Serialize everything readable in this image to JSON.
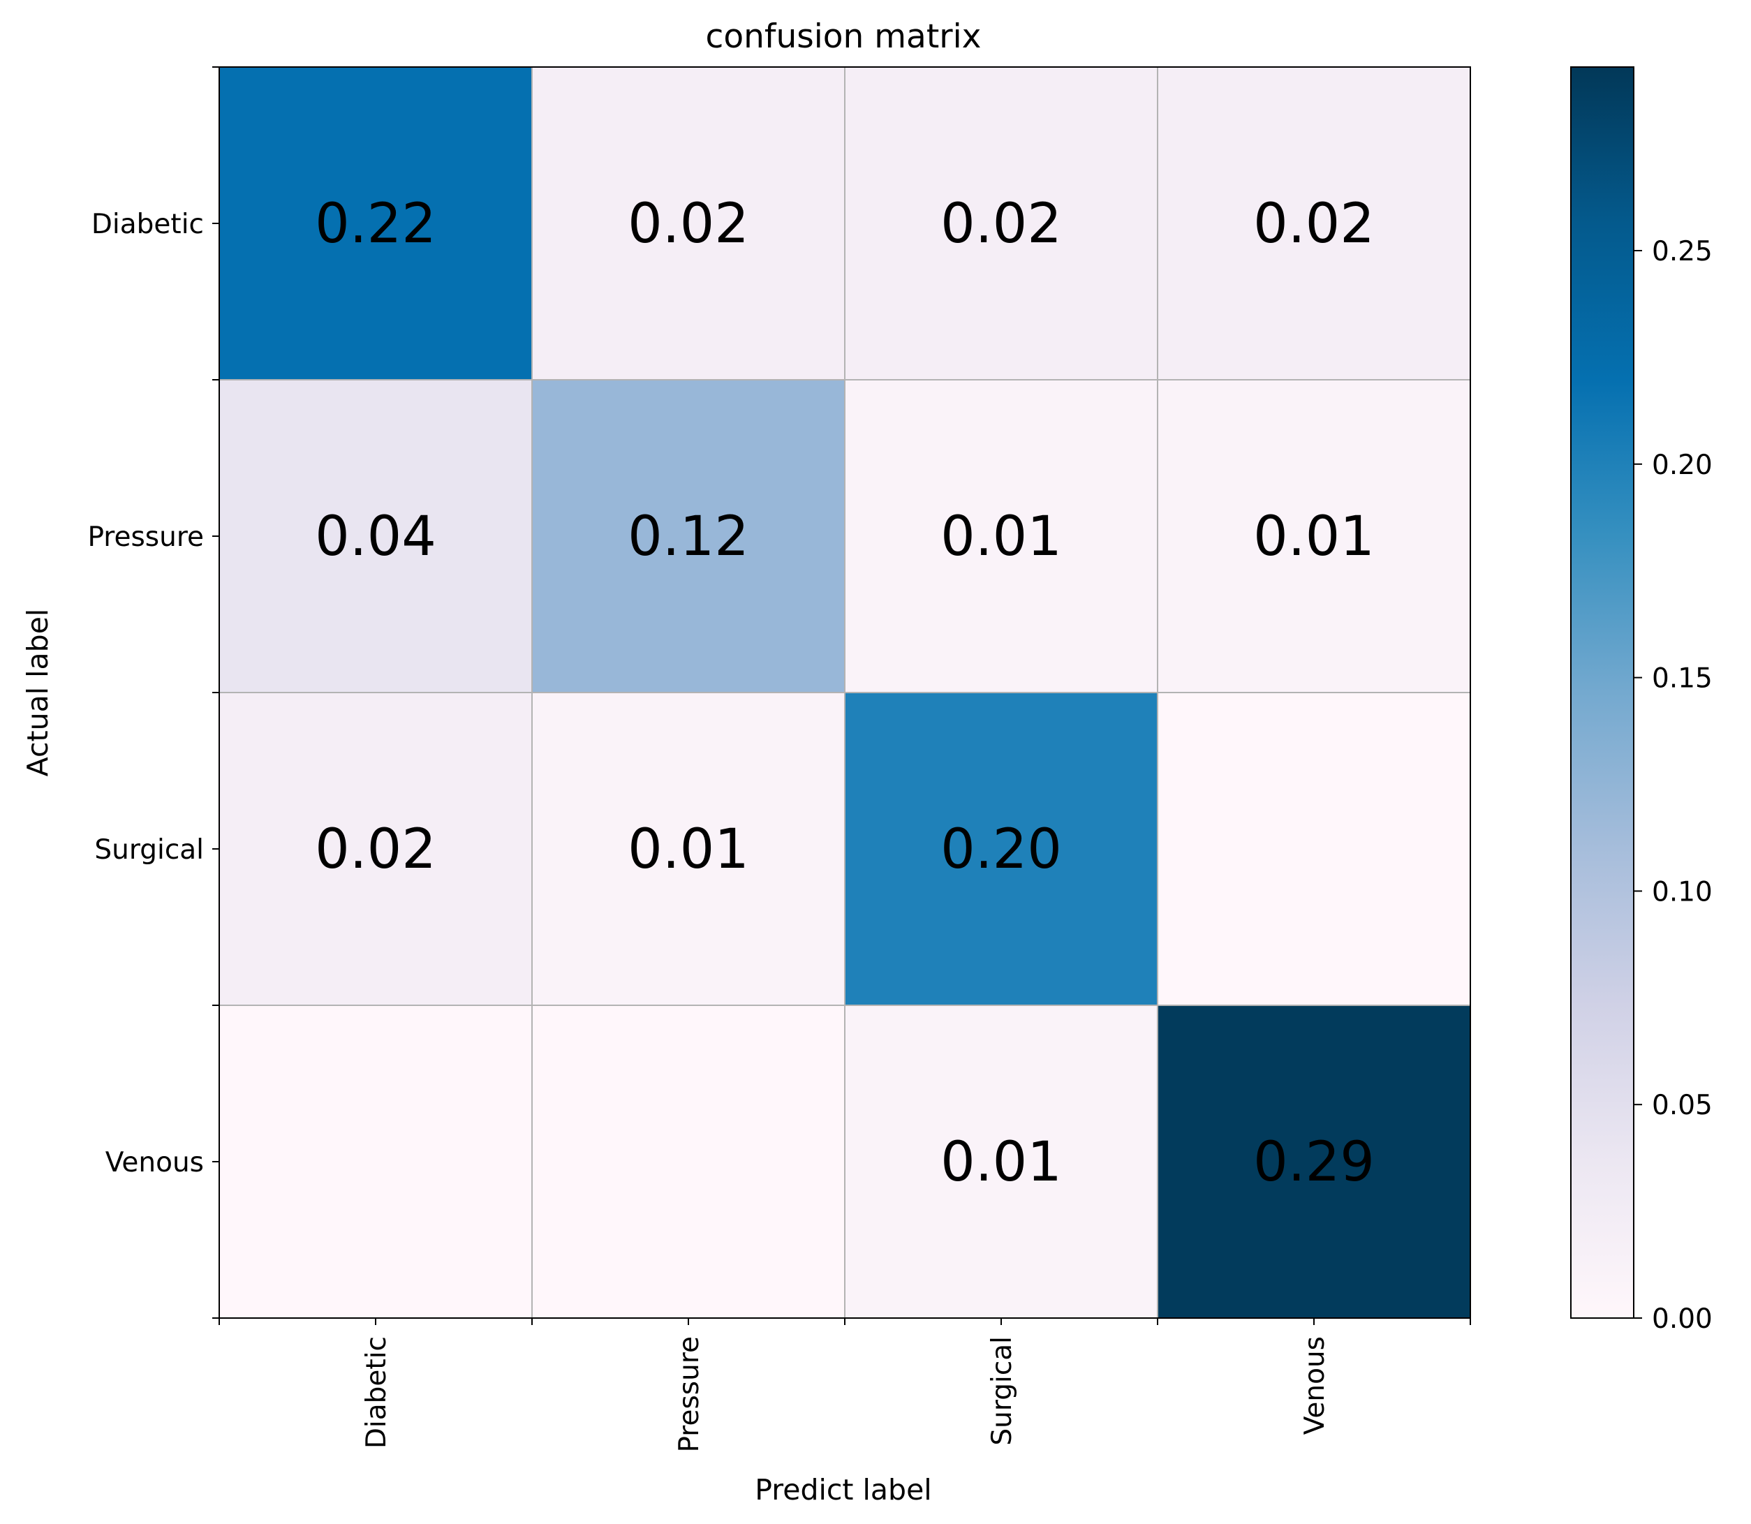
{
  "chart_data": {
    "type": "heatmap",
    "title": "confusion matrix",
    "xlabel": "Predict label",
    "ylabel": "Actual label",
    "x_categories": [
      "Diabetic",
      "Pressure",
      "Surgical",
      "Venous"
    ],
    "y_categories": [
      "Diabetic",
      "Pressure",
      "Surgical",
      "Venous"
    ],
    "values": [
      [
        0.22,
        0.02,
        0.02,
        0.02
      ],
      [
        0.04,
        0.12,
        0.01,
        0.01
      ],
      [
        0.02,
        0.01,
        0.2,
        0.0
      ],
      [
        0.0,
        0.0,
        0.01,
        0.29
      ]
    ],
    "cell_labels": [
      [
        "0.22",
        "0.02",
        "0.02",
        "0.02"
      ],
      [
        "0.04",
        "0.12",
        "0.01",
        "0.01"
      ],
      [
        "0.02",
        "0.01",
        "0.20",
        ""
      ],
      [
        "",
        "",
        "0.01",
        "0.29"
      ]
    ],
    "colormap": "PuBu",
    "colorbar": {
      "range": [
        0.0,
        0.293
      ],
      "ticks": [
        0.0,
        0.05,
        0.1,
        0.15,
        0.2,
        0.25
      ],
      "tick_labels": [
        "0.00",
        "0.05",
        "0.10",
        "0.15",
        "0.20",
        "0.25"
      ]
    },
    "grid": true,
    "grid_color": "#b3b3b3"
  }
}
